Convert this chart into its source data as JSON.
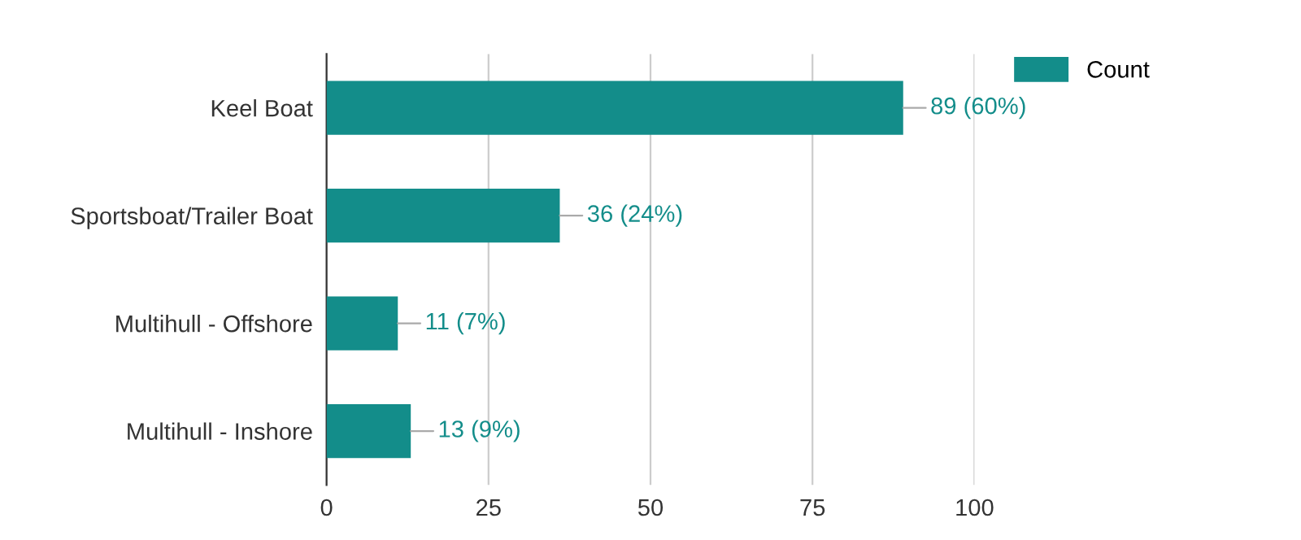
{
  "chart_data": {
    "type": "bar",
    "orientation": "horizontal",
    "categories": [
      "Keel Boat",
      "Sportsboat/Trailer Boat",
      "Multihull - Offshore",
      "Multihull - Inshore"
    ],
    "series": [
      {
        "name": "Count",
        "color": "#138d8a",
        "values": [
          89,
          36,
          11,
          13
        ],
        "value_labels": [
          "89 (60%)",
          "36 (24%)",
          "11 (7%)",
          "13 (9%)"
        ]
      }
    ],
    "xlim": [
      0,
      100
    ],
    "xticks": [
      0,
      25,
      50,
      75,
      100
    ],
    "grid": "x",
    "legend": "top right"
  }
}
